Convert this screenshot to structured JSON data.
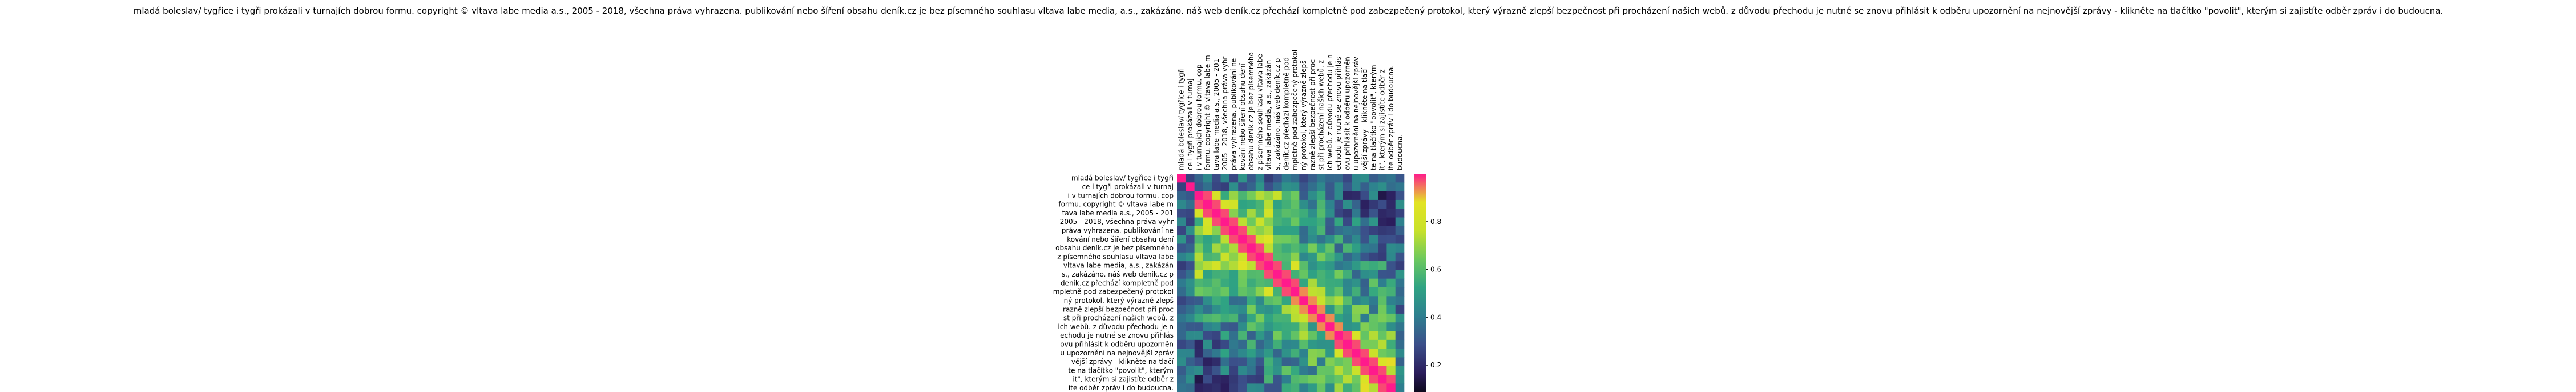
{
  "chart_data": {
    "type": "heatmap",
    "title": "mladá boleslav/ tygřice i tygři prokázali v turnajích dobrou formu. copyright © vltava labe media a.s., 2005 - 2018, všechna práva vyhrazena. publikování nebo šíření obsahu deník.cz je bez písemného souhlasu vltava labe media, a.s., zakázáno. náš web deník.cz přechází kompletně pod zabezpečený protokol, který výrazně zlepší bezpečnost při procházení našich webů. z důvodu přechodu je nutné se znovu přihlásit k odběru upozornění na nejnovější zprávy - klikněte na tlačítko \"povolit\", kterým si zajistíte odběr zpráv i do budoucna.",
    "xlabel": "",
    "ylabel": "",
    "colormap": [
      "#000000",
      "#2b1d5c",
      "#3b4f8a",
      "#2e7f8f",
      "#2fa383",
      "#6dc95e",
      "#c8e12a",
      "#e3e324",
      "#ff1a8c"
    ],
    "colorbar": {
      "ticks": [
        0.2,
        0.4,
        0.6,
        0.8
      ],
      "labels": [
        "0.2",
        "0.4",
        "0.6",
        "0.8"
      ],
      "range": [
        0.05,
        1.0
      ]
    },
    "labels": [
      "mladá boleslav/ tygřice i tygři",
      "ce i tygři prokázali v turnaj",
      "i v turnajích dobrou formu. cop",
      "formu. copyright © vltava labe m",
      "tava labe media a.s., 2005 - 201",
      "2005 - 2018, všechna práva vyhr",
      "práva vyhrazena. publikování ne",
      "kování nebo šíření obsahu dení",
      "obsahu deník.cz je bez písemného",
      "z písemného souhlasu vltava labe",
      "vltava labe media, a.s., zakázán",
      "s., zakázáno. náš web deník.cz p",
      "deník.cz přechází kompletně pod",
      "mpletně pod zabezpečený protokol",
      "ný protokol, který výrazně zlepš",
      "razně zlepší bezpečnost při proc",
      "st při procházení našich webů. z",
      "ich webů. z důvodu přechodu je n",
      "echodu je nutné se znovu přihlás",
      "ovu přihlásit k odběru upozorněn",
      "u upozornění na nejnovější zpráv",
      "vější zprávy - klikněte na tlačí",
      "te na tlačítko \"povolit\", kterým",
      "it\", kterým si zajistíte odběr z",
      "íte odběr zpráv i do budoucna.",
      " budoucna."
    ]
  }
}
